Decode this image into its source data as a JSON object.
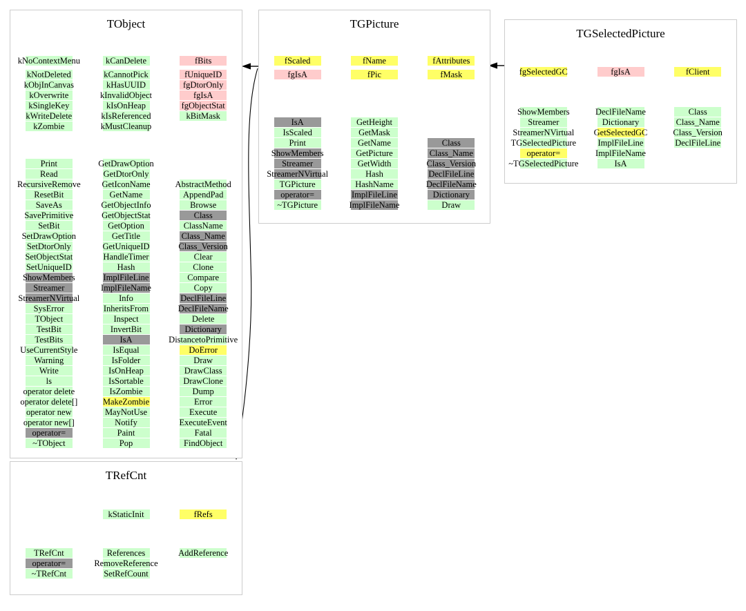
{
  "colors": {
    "green": "#ccffcc",
    "yellow": "#ffff66",
    "pink": "#ffcccc",
    "gray": "#999999",
    "border": "#cccccc",
    "arrow": "#000000"
  },
  "inheritance": [
    {
      "from": "TGPicture",
      "to": "TObject"
    },
    {
      "from": "TGPicture",
      "to": "TRefCnt"
    },
    {
      "from": "TGSelectedPicture",
      "to": "TGPicture"
    }
  ],
  "classes": [
    {
      "name": "TObject",
      "members": [
        [
          {
            "t": "kNoContextMenu",
            "c": "green"
          },
          {
            "t": "kNotDeleted",
            "c": "green"
          },
          {
            "t": "kObjInCanvas",
            "c": "green"
          },
          {
            "t": "kOverwrite",
            "c": "green"
          },
          {
            "t": "kSingleKey",
            "c": "green"
          },
          {
            "t": "kWriteDelete",
            "c": "green"
          },
          {
            "t": "kZombie",
            "c": "green"
          }
        ],
        [
          {
            "t": "kCanDelete",
            "c": "green"
          },
          {
            "t": "kCannotPick",
            "c": "green"
          },
          {
            "t": "kHasUUID",
            "c": "green"
          },
          {
            "t": "kInvalidObject",
            "c": "green"
          },
          {
            "t": "kIsOnHeap",
            "c": "green"
          },
          {
            "t": "kIsReferenced",
            "c": "green"
          },
          {
            "t": "kMustCleanup",
            "c": "green"
          }
        ],
        [
          {
            "t": "fBits",
            "c": "pink"
          },
          {
            "t": "fUniqueID",
            "c": "pink"
          },
          {
            "t": "fgDtorOnly",
            "c": "pink"
          },
          {
            "t": "fgIsA",
            "c": "pink"
          },
          {
            "t": "fgObjectStat",
            "c": "pink"
          },
          {
            "t": "kBitMask",
            "c": "green"
          }
        ]
      ],
      "methods": [
        [
          {
            "t": "Print",
            "c": "green"
          },
          {
            "t": "Read",
            "c": "green"
          },
          {
            "t": "RecursiveRemove",
            "c": "green"
          },
          {
            "t": "ResetBit",
            "c": "green"
          },
          {
            "t": "SaveAs",
            "c": "green"
          },
          {
            "t": "SavePrimitive",
            "c": "green"
          },
          {
            "t": "SetBit",
            "c": "green"
          },
          {
            "t": "SetDrawOption",
            "c": "green"
          },
          {
            "t": "SetDtorOnly",
            "c": "green"
          },
          {
            "t": "SetObjectStat",
            "c": "green"
          },
          {
            "t": "SetUniqueID",
            "c": "green"
          },
          {
            "t": "ShowMembers",
            "c": "gray"
          },
          {
            "t": "Streamer",
            "c": "gray"
          },
          {
            "t": "StreamerNVirtual",
            "c": "gray"
          },
          {
            "t": "SysError",
            "c": "green"
          },
          {
            "t": "TObject",
            "c": "green"
          },
          {
            "t": "TestBit",
            "c": "green"
          },
          {
            "t": "TestBits",
            "c": "green"
          },
          {
            "t": "UseCurrentStyle",
            "c": "green"
          },
          {
            "t": "Warning",
            "c": "green"
          },
          {
            "t": "Write",
            "c": "green"
          },
          {
            "t": "ls",
            "c": "green"
          },
          {
            "t": "operator delete",
            "c": "green"
          },
          {
            "t": "operator delete[]",
            "c": "green"
          },
          {
            "t": "operator new",
            "c": "green"
          },
          {
            "t": "operator new[]",
            "c": "green"
          },
          {
            "t": "operator=",
            "c": "gray"
          },
          {
            "t": "~TObject",
            "c": "green"
          }
        ],
        [
          {
            "t": "GetDrawOption",
            "c": "green"
          },
          {
            "t": "GetDtorOnly",
            "c": "green"
          },
          {
            "t": "GetIconName",
            "c": "green"
          },
          {
            "t": "GetName",
            "c": "green"
          },
          {
            "t": "GetObjectInfo",
            "c": "green"
          },
          {
            "t": "GetObjectStat",
            "c": "green"
          },
          {
            "t": "GetOption",
            "c": "green"
          },
          {
            "t": "GetTitle",
            "c": "green"
          },
          {
            "t": "GetUniqueID",
            "c": "green"
          },
          {
            "t": "HandleTimer",
            "c": "green"
          },
          {
            "t": "Hash",
            "c": "green"
          },
          {
            "t": "ImplFileLine",
            "c": "gray"
          },
          {
            "t": "ImplFileName",
            "c": "gray"
          },
          {
            "t": "Info",
            "c": "green"
          },
          {
            "t": "InheritsFrom",
            "c": "green"
          },
          {
            "t": "Inspect",
            "c": "green"
          },
          {
            "t": "InvertBit",
            "c": "green"
          },
          {
            "t": "IsA",
            "c": "gray"
          },
          {
            "t": "IsEqual",
            "c": "green"
          },
          {
            "t": "IsFolder",
            "c": "green"
          },
          {
            "t": "IsOnHeap",
            "c": "green"
          },
          {
            "t": "IsSortable",
            "c": "green"
          },
          {
            "t": "IsZombie",
            "c": "green"
          },
          {
            "t": "MakeZombie",
            "c": "yellow"
          },
          {
            "t": "MayNotUse",
            "c": "green"
          },
          {
            "t": "Notify",
            "c": "green"
          },
          {
            "t": "Paint",
            "c": "green"
          },
          {
            "t": "Pop",
            "c": "green"
          }
        ],
        [
          null,
          null,
          {
            "t": "AbstractMethod",
            "c": "green"
          },
          {
            "t": "AppendPad",
            "c": "green"
          },
          {
            "t": "Browse",
            "c": "green"
          },
          {
            "t": "Class",
            "c": "gray"
          },
          {
            "t": "ClassName",
            "c": "green"
          },
          {
            "t": "Class_Name",
            "c": "gray"
          },
          {
            "t": "Class_Version",
            "c": "gray"
          },
          {
            "t": "Clear",
            "c": "green"
          },
          {
            "t": "Clone",
            "c": "green"
          },
          {
            "t": "Compare",
            "c": "green"
          },
          {
            "t": "Copy",
            "c": "green"
          },
          {
            "t": "DeclFileLine",
            "c": "gray"
          },
          {
            "t": "DeclFileName",
            "c": "gray"
          },
          {
            "t": "Delete",
            "c": "green"
          },
          {
            "t": "Dictionary",
            "c": "gray"
          },
          {
            "t": "DistancetoPrimitive",
            "c": "green"
          },
          {
            "t": "DoError",
            "c": "yellow"
          },
          {
            "t": "Draw",
            "c": "green"
          },
          {
            "t": "DrawClass",
            "c": "green"
          },
          {
            "t": "DrawClone",
            "c": "green"
          },
          {
            "t": "Dump",
            "c": "green"
          },
          {
            "t": "Error",
            "c": "green"
          },
          {
            "t": "Execute",
            "c": "green"
          },
          {
            "t": "ExecuteEvent",
            "c": "green"
          },
          {
            "t": "Fatal",
            "c": "green"
          },
          {
            "t": "FindObject",
            "c": "green"
          }
        ]
      ]
    },
    {
      "name": "TGPicture",
      "members": [
        [
          {
            "t": "fScaled",
            "c": "yellow"
          },
          {
            "t": "fgIsA",
            "c": "pink"
          }
        ],
        [
          {
            "t": "fName",
            "c": "yellow"
          },
          {
            "t": "fPic",
            "c": "yellow"
          }
        ],
        [
          {
            "t": "fAttributes",
            "c": "yellow"
          },
          {
            "t": "fMask",
            "c": "yellow"
          }
        ]
      ],
      "methods": [
        [
          {
            "t": "IsA",
            "c": "gray"
          },
          {
            "t": "IsScaled",
            "c": "green"
          },
          {
            "t": "Print",
            "c": "green"
          },
          {
            "t": "ShowMembers",
            "c": "gray"
          },
          {
            "t": "Streamer",
            "c": "gray"
          },
          {
            "t": "StreamerNVirtual",
            "c": "gray"
          },
          {
            "t": "TGPicture",
            "c": "green"
          },
          {
            "t": "operator=",
            "c": "gray"
          },
          {
            "t": "~TGPicture",
            "c": "green"
          }
        ],
        [
          {
            "t": "GetHeight",
            "c": "green"
          },
          {
            "t": "GetMask",
            "c": "green"
          },
          {
            "t": "GetName",
            "c": "green"
          },
          {
            "t": "GetPicture",
            "c": "green"
          },
          {
            "t": "GetWidth",
            "c": "green"
          },
          {
            "t": "Hash",
            "c": "green"
          },
          {
            "t": "HashName",
            "c": "green"
          },
          {
            "t": "ImplFileLine",
            "c": "gray"
          },
          {
            "t": "ImplFileName",
            "c": "gray"
          }
        ],
        [
          null,
          null,
          {
            "t": "Class",
            "c": "gray"
          },
          {
            "t": "Class_Name",
            "c": "gray"
          },
          {
            "t": "Class_Version",
            "c": "gray"
          },
          {
            "t": "DeclFileLine",
            "c": "gray"
          },
          {
            "t": "DeclFileName",
            "c": "gray"
          },
          {
            "t": "Dictionary",
            "c": "gray"
          },
          {
            "t": "Draw",
            "c": "green"
          }
        ]
      ]
    },
    {
      "name": "TGSelectedPicture",
      "members": [
        [
          {
            "t": "fgSelectedGC",
            "c": "yellow"
          }
        ],
        [
          {
            "t": "fgIsA",
            "c": "pink"
          }
        ],
        [
          {
            "t": "fClient",
            "c": "yellow"
          }
        ]
      ],
      "methods": [
        [
          {
            "t": "ShowMembers",
            "c": "green"
          },
          {
            "t": "Streamer",
            "c": "green"
          },
          {
            "t": "StreamerNVirtual",
            "c": "green"
          },
          {
            "t": "TGSelectedPicture",
            "c": "green"
          },
          {
            "t": "operator=",
            "c": "yellow"
          },
          {
            "t": "~TGSelectedPicture",
            "c": "green"
          }
        ],
        [
          {
            "t": "DeclFileName",
            "c": "green"
          },
          {
            "t": "Dictionary",
            "c": "green"
          },
          {
            "t": "GetSelectedGC",
            "c": "yellow"
          },
          {
            "t": "ImplFileLine",
            "c": "green"
          },
          {
            "t": "ImplFileName",
            "c": "green"
          },
          {
            "t": "IsA",
            "c": "green"
          }
        ],
        [
          {
            "t": "Class",
            "c": "green"
          },
          {
            "t": "Class_Name",
            "c": "green"
          },
          {
            "t": "Class_Version",
            "c": "green"
          },
          {
            "t": "DeclFileLine",
            "c": "green"
          }
        ]
      ]
    },
    {
      "name": "TRefCnt",
      "members": [
        [],
        [
          {
            "t": "kStaticInit",
            "c": "green"
          }
        ],
        [
          {
            "t": "fRefs",
            "c": "yellow"
          }
        ]
      ],
      "methods": [
        [
          {
            "t": "TRefCnt",
            "c": "green"
          },
          {
            "t": "operator=",
            "c": "gray"
          },
          {
            "t": "~TRefCnt",
            "c": "green"
          }
        ],
        [
          {
            "t": "References",
            "c": "green"
          },
          {
            "t": "RemoveReference",
            "c": "green"
          },
          {
            "t": "SetRefCount",
            "c": "green"
          }
        ],
        [
          {
            "t": "AddReference",
            "c": "green"
          }
        ]
      ]
    }
  ]
}
